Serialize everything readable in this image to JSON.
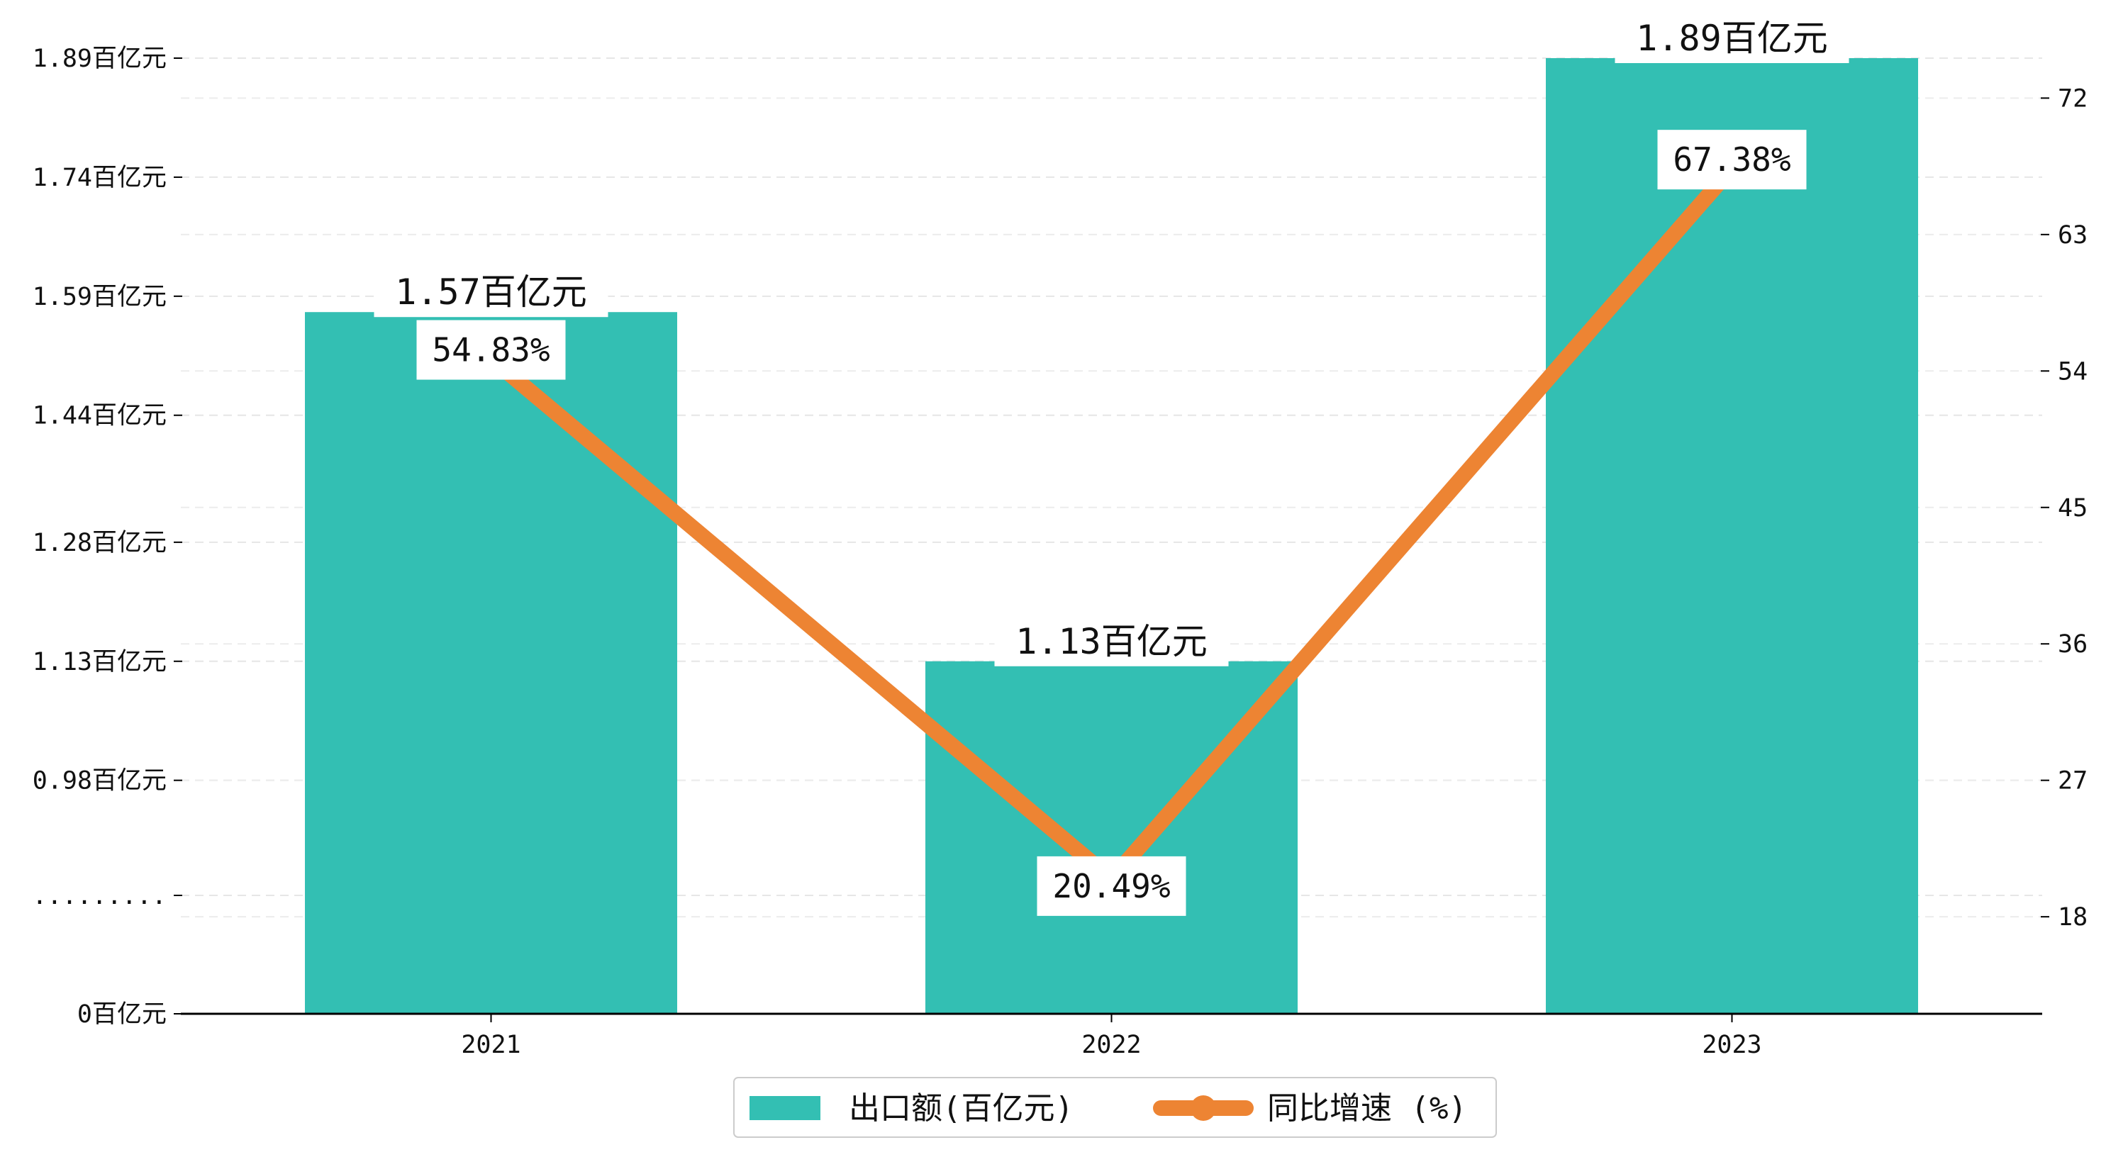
{
  "chart_data": {
    "type": "bar",
    "categories": [
      "2021",
      "2022",
      "2023"
    ],
    "series": [
      {
        "name": "出口额(百亿元)",
        "type": "bar",
        "axis": "left",
        "values": [
          1.57,
          1.13,
          1.89
        ],
        "labels": [
          "1.57百亿元",
          "1.13百亿元",
          "1.89百亿元"
        ],
        "color": "#33BFB3"
      },
      {
        "name": "同比增速 (%)",
        "type": "line",
        "axis": "right",
        "values": [
          54.83,
          20.49,
          67.38
        ],
        "labels": [
          "54.83%",
          "20.49%",
          "67.38%"
        ],
        "color": "#ED8433"
      }
    ],
    "y_left": {
      "ticks": [
        {
          "value": 0.0,
          "label": "0百亿元"
        },
        {
          "value": 0.835,
          "label": "........."
        },
        {
          "value": 0.98,
          "label": "0.98百亿元"
        },
        {
          "value": 1.13,
          "label": "1.13百亿元"
        },
        {
          "value": 1.28,
          "label": "1.28百亿元"
        },
        {
          "value": 1.44,
          "label": "1.44百亿元"
        },
        {
          "value": 1.59,
          "label": "1.59百亿元"
        },
        {
          "value": 1.74,
          "label": "1.74百亿元"
        },
        {
          "value": 1.89,
          "label": "1.89百亿元"
        }
      ],
      "axis_break": true
    },
    "y_right": {
      "ticks": [
        18,
        27,
        36,
        45,
        54,
        63,
        72
      ],
      "range": [
        11.6,
        76.6
      ]
    },
    "grid": true,
    "legend_position": "bottom-center"
  }
}
